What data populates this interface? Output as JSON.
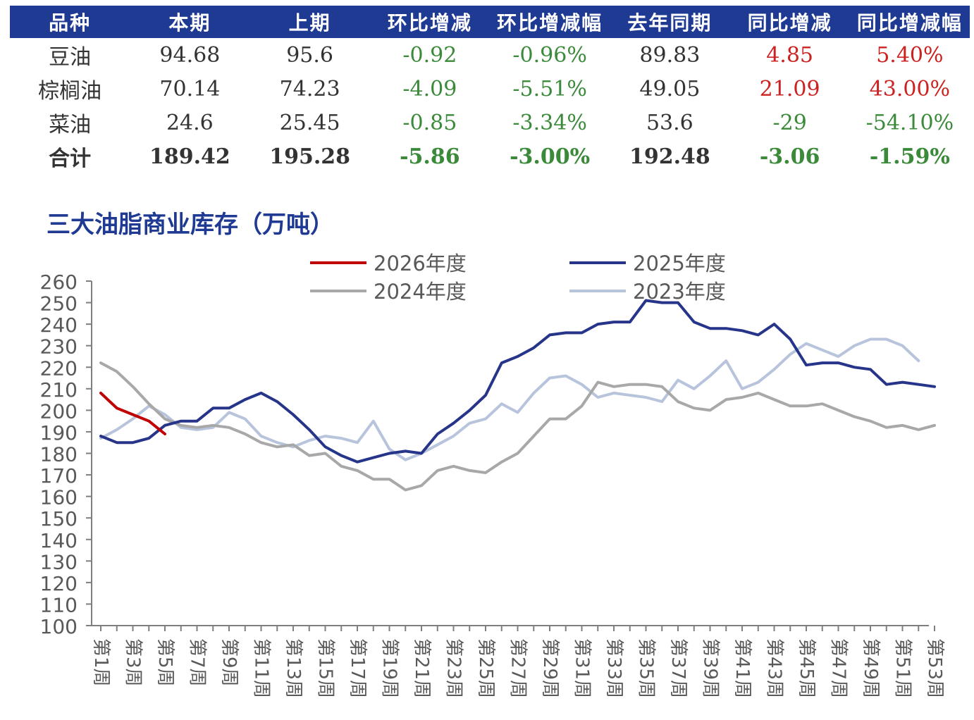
{
  "table": {
    "headers": [
      "品种",
      "本期",
      "上期",
      "环比增减",
      "环比增减幅",
      "去年同期",
      "同比增减",
      "同比增减幅"
    ],
    "rows": [
      {
        "name": "豆油",
        "cells": [
          "94.68",
          "95.6",
          "-0.92",
          "-0.96%",
          "89.83",
          "4.85",
          "5.40%"
        ]
      },
      {
        "name": "棕榈油",
        "cells": [
          "70.14",
          "74.23",
          "-4.09",
          "-5.51%",
          "49.05",
          "21.09",
          "43.00%"
        ]
      },
      {
        "name": "菜油",
        "cells": [
          "24.6",
          "25.45",
          "-0.85",
          "-3.34%",
          "53.6",
          "-29",
          "-54.10%"
        ]
      },
      {
        "name": "合计",
        "cells": [
          "189.42",
          "195.28",
          "-5.86",
          "-3.00%",
          "192.48",
          "-3.06",
          "-1.59%"
        ]
      }
    ],
    "colors": {
      "header_bg": "#1f3a93",
      "negative": "#3a8a3a",
      "positive": "#cc2222",
      "neutral": "#333333"
    }
  },
  "chart_data": {
    "type": "line",
    "title": "三大油脂商业库存（万吨）",
    "ylim": [
      100,
      260
    ],
    "y_ticks": [
      100,
      110,
      120,
      130,
      140,
      150,
      160,
      170,
      180,
      190,
      200,
      210,
      220,
      230,
      240,
      250,
      260
    ],
    "x_tick_labels": [
      "第1周",
      "第3周",
      "第5周",
      "第7周",
      "第9周",
      "第11周",
      "第13周",
      "第15周",
      "第17周",
      "第19周",
      "第21周",
      "第23周",
      "第25周",
      "第27周",
      "第29周",
      "第31周",
      "第33周",
      "第35周",
      "第37周",
      "第39周",
      "第41周",
      "第43周",
      "第45周",
      "第47周",
      "第49周",
      "第51周",
      "第53周"
    ],
    "legend_position": "top",
    "series": [
      {
        "name": "2026年度",
        "color": "#c00000",
        "values": [
          208,
          201,
          198,
          195,
          189
        ]
      },
      {
        "name": "2025年度",
        "color": "#26358a",
        "values": [
          188,
          185,
          185,
          187,
          193,
          195,
          195,
          201,
          201,
          205,
          208,
          204,
          198,
          191,
          183,
          179,
          176,
          178,
          180,
          181,
          180,
          189,
          194,
          200,
          207,
          222,
          225,
          229,
          235,
          236,
          236,
          240,
          241,
          241,
          251,
          250,
          250,
          241,
          238,
          238,
          237,
          235,
          240,
          233,
          221,
          222,
          222,
          220,
          219,
          212,
          213,
          212,
          211
        ]
      },
      {
        "name": "2024年度",
        "color": "#a8a8a8",
        "values": [
          222,
          218,
          211,
          203,
          196,
          193,
          192,
          193,
          192,
          189,
          185,
          183,
          184,
          179,
          180,
          174,
          172,
          168,
          168,
          163,
          165,
          172,
          174,
          172,
          171,
          176,
          180,
          188,
          196,
          196,
          202,
          213,
          211,
          212,
          212,
          211,
          204,
          201,
          200,
          205,
          206,
          208,
          205,
          202,
          202,
          203,
          200,
          197,
          195,
          192,
          193,
          191,
          193
        ]
      },
      {
        "name": "2023年度",
        "color": "#b8c4dc",
        "values": [
          187,
          191,
          196,
          202,
          198,
          192,
          191,
          192,
          199,
          196,
          188,
          185,
          183,
          186,
          188,
          187,
          185,
          195,
          182,
          177,
          180,
          184,
          188,
          194,
          196,
          203,
          199,
          208,
          215,
          216,
          212,
          206,
          208,
          207,
          206,
          204,
          214,
          210,
          216,
          223,
          210,
          213,
          219,
          226,
          231,
          228,
          225,
          230,
          233,
          233,
          230,
          223
        ]
      }
    ]
  }
}
